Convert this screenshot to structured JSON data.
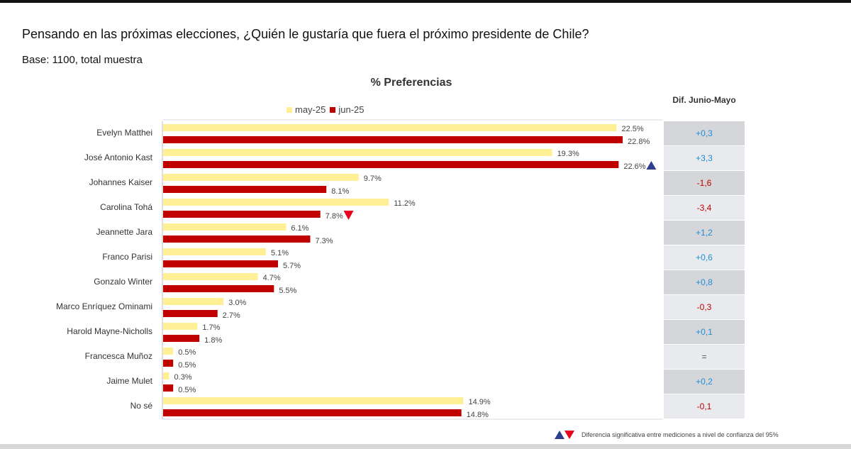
{
  "header": {
    "question": "Pensando en las próximas elecciones, ¿Quién le gustaría que fuera el próximo presidente de Chile?",
    "base": "Base: 1100, total muestra"
  },
  "footnote": "Diferencia significativa entre mediciones a nivel de confianza del 95%",
  "colors": {
    "may": "#fff096",
    "jun": "#c00000",
    "up_marker": "#2e3e8c",
    "down_marker": "#e8001c",
    "dif_positive": "#1e90d6",
    "dif_negative": "#c00000",
    "dif_neutral": "#555555",
    "dif_bg_dark": "#d4d6da",
    "dif_bg_light": "#e8eaed"
  },
  "chart_data": {
    "type": "bar",
    "orientation": "horizontal",
    "title": "% Preferencias",
    "dif_header": "Dif. Junio-Mayo",
    "legend_position": "top",
    "categories": [
      "Evelyn Matthei",
      "José Antonio Kast",
      "Johannes Kaiser",
      "Carolina Tohá",
      "Jeannette Jara",
      "Franco Parisi",
      "Gonzalo Winter",
      "Marco Enríquez Ominami",
      "Harold Mayne-Nicholls",
      "Francesca Muñoz",
      "Jaime Mulet",
      "No sé"
    ],
    "series": [
      {
        "name": "may-25",
        "values": [
          22.5,
          19.3,
          9.7,
          11.2,
          6.1,
          5.1,
          4.7,
          3.0,
          1.7,
          0.5,
          0.3,
          14.9
        ],
        "labels": [
          "22.5%",
          "19.3%",
          "9.7%",
          "11.2%",
          "6.1%",
          "5.1%",
          "4.7%",
          "3.0%",
          "1.7%",
          "0.5%",
          "0.3%",
          "14.9%"
        ]
      },
      {
        "name": "jun-25",
        "values": [
          22.8,
          22.6,
          8.1,
          7.8,
          7.3,
          5.7,
          5.5,
          2.7,
          1.8,
          0.5,
          0.5,
          14.8
        ],
        "labels": [
          "22.8%",
          "22.6%",
          "8.1%",
          "7.8%",
          "7.3%",
          "5.7%",
          "5.5%",
          "2.7%",
          "1.8%",
          "0.5%",
          "0.5%",
          "14.8%"
        ]
      }
    ],
    "differences": [
      "+0,3",
      "+3,3",
      "-1,6",
      "-3,4",
      "+1,2",
      "+0,6",
      "+0,8",
      "-0,3",
      "+0,1",
      "=",
      "+0,2",
      "-0,1"
    ],
    "significance": [
      "",
      "up",
      "",
      "down",
      "",
      "",
      "",
      "",
      "",
      "",
      "",
      ""
    ],
    "xlim": [
      0,
      24.1
    ],
    "grid": false
  }
}
